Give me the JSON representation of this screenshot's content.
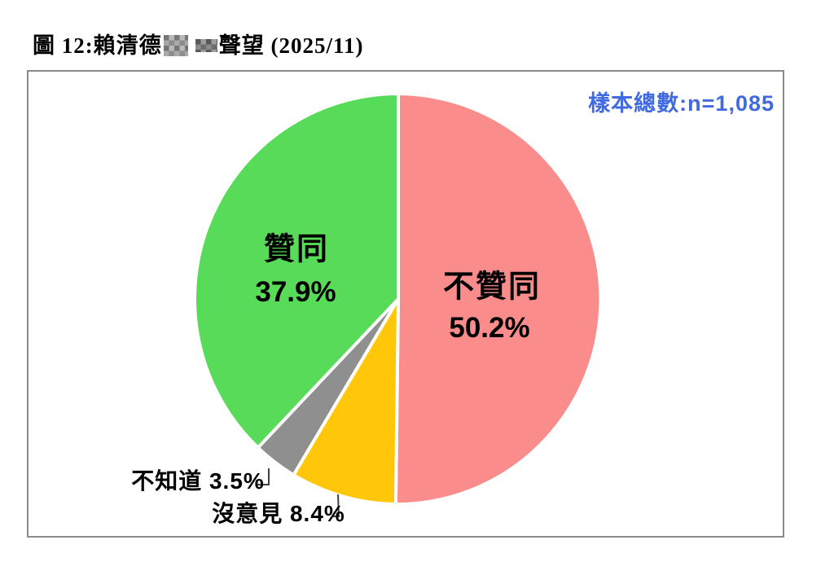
{
  "page": {
    "title_prefix": "圖 12:賴清德",
    "title_suffix": "聲望 (2025/11)"
  },
  "chart": {
    "sample_note": "樣本總數:n=1,085"
  },
  "chart_data": {
    "type": "pie",
    "title": "賴清德[редacted]聲望 (2025/11)",
    "sample_size_text": "樣本總數:n=1,085",
    "sample_size": 1085,
    "start_angle_deg": 0,
    "direction": "clockwise",
    "legend_position": "none",
    "slices": [
      {
        "label": "不贊同",
        "value": 50.2,
        "pct_text": "50.2%",
        "color": "#FB8C8C",
        "label_position": "inside"
      },
      {
        "label": "沒意見",
        "value": 8.4,
        "pct_text": "8.4%",
        "color": "#FFC60A",
        "label_position": "outside"
      },
      {
        "label": "不知道",
        "value": 3.5,
        "pct_text": "3.5%",
        "color": "#8F8F8F",
        "label_position": "outside"
      },
      {
        "label": "贊同",
        "value": 37.9,
        "pct_text": "37.9%",
        "color": "#57DB58",
        "label_position": "inside"
      }
    ]
  }
}
